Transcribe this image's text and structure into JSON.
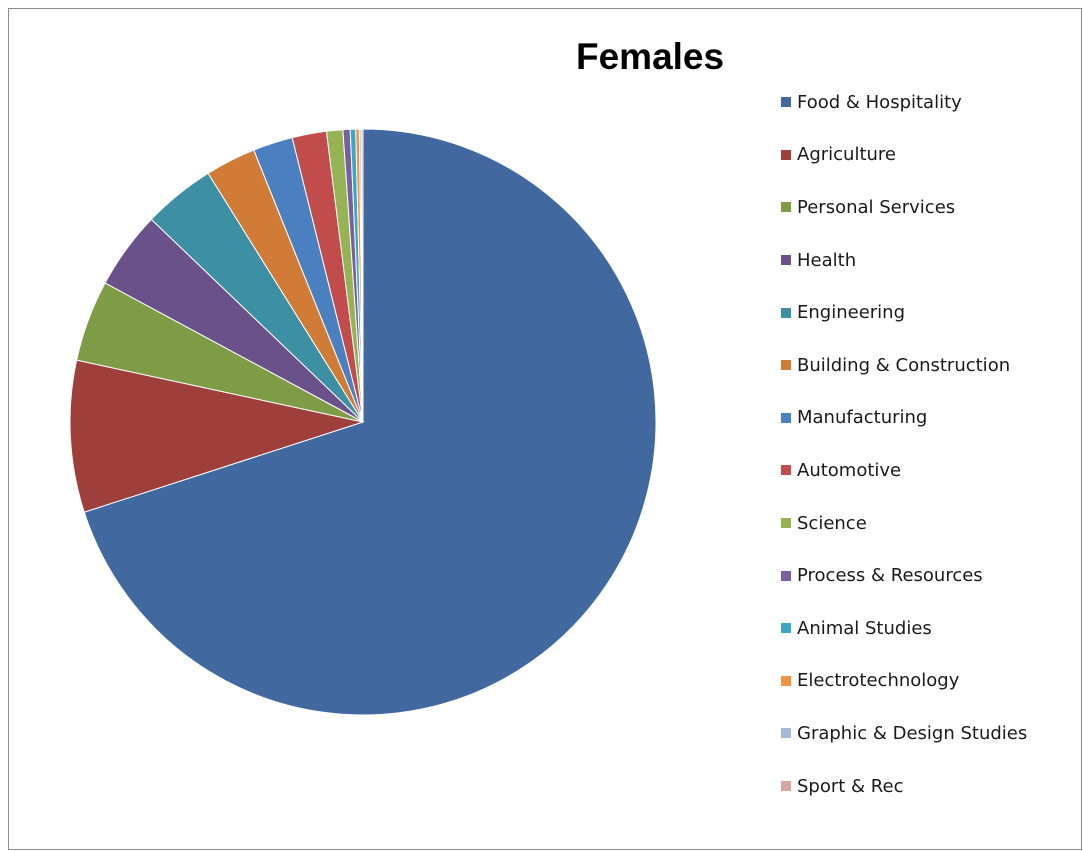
{
  "chart_data": {
    "type": "pie",
    "title": "Females",
    "legend_position": "right",
    "categories": [
      "Food & Hospitality",
      "Agriculture",
      "Personal Services",
      "Health",
      "Engineering",
      "Building & Construction",
      "Manufacturing",
      "Automotive",
      "Science",
      "Process & Resources",
      "Animal Studies",
      "Electrotechnology",
      "Graphic & Design Studies",
      "Sport & Rec"
    ],
    "values": [
      70.3,
      8.4,
      4.5,
      4.3,
      4.0,
      2.8,
      2.2,
      1.9,
      0.9,
      0.4,
      0.3,
      0.2,
      0.1,
      0.1
    ],
    "colors": [
      "#4169a0",
      "#9e3f3c",
      "#7e9b46",
      "#6a5189",
      "#3d8fa3",
      "#d07c37",
      "#4a7fc0",
      "#c24b4b",
      "#95b352",
      "#7a5fa0",
      "#3aa8c5",
      "#f2913f",
      "#a3b9d8",
      "#d8a4a4"
    ]
  }
}
